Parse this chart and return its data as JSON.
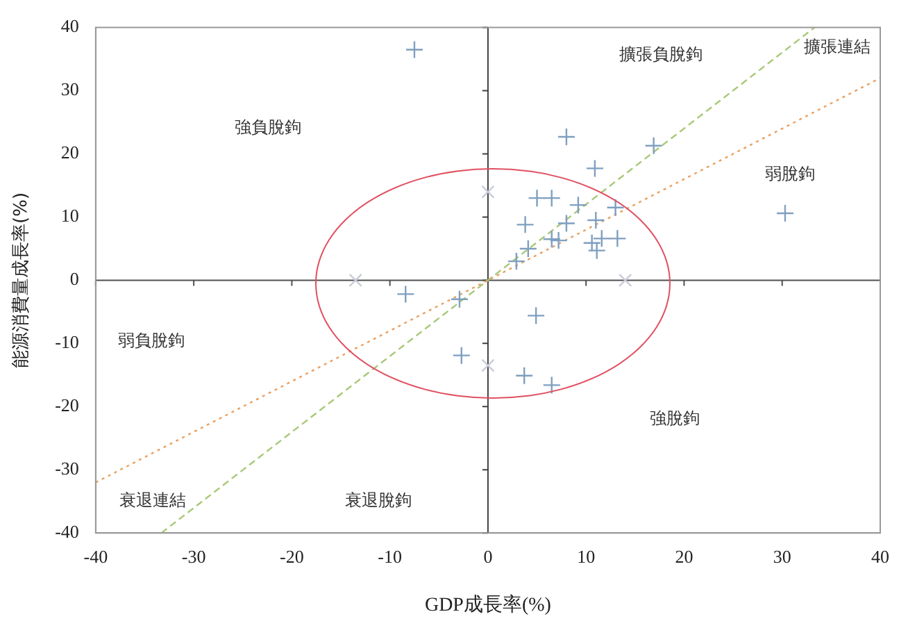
{
  "chart_data": {
    "type": "scatter",
    "xlabel": "GDP成長率(%)",
    "ylabel": "能源消費量成長率(%)",
    "xlim": [
      -40,
      40
    ],
    "xticks": [
      -40,
      -30,
      -20,
      -10,
      0,
      10,
      20,
      30,
      40
    ],
    "ylim": [
      -40,
      40
    ],
    "yticks": [
      -40,
      -30,
      -20,
      -10,
      0,
      10,
      20,
      30,
      40
    ],
    "grid": false,
    "legend": false,
    "marker": "cross",
    "series": [
      {
        "color": "#7f9fc0",
        "x": [
          -7.5,
          8,
          16.9,
          10.9,
          30.3,
          5,
          6.5,
          9.2,
          13,
          8,
          3.8,
          11,
          6.5,
          7.2,
          10.6,
          11.6,
          13.2,
          11.1,
          4.1,
          2.9,
          -8.4,
          -2.9,
          4.9,
          -2.7,
          3.7,
          6.5
        ],
        "values": [
          36.5,
          22.7,
          21.3,
          17.7,
          10.6,
          13,
          13,
          11.9,
          11.5,
          9,
          8.8,
          9.5,
          6.5,
          6.3,
          5.9,
          6.6,
          6.6,
          4.7,
          5,
          3,
          -2.2,
          -3,
          -5.6,
          -11.9,
          -15.1,
          -16.6
        ]
      },
      {
        "color": "#c8ccd8",
        "marker": "x",
        "x": [
          -13.5,
          14,
          0,
          0
        ],
        "values": [
          0,
          0,
          14,
          -13.5
        ]
      },
      {
        "type": "line",
        "color": "#e8a060",
        "line_style": "dotted",
        "marker": "none",
        "x": [
          -40,
          40
        ],
        "values": [
          -32,
          32
        ]
      },
      {
        "type": "line",
        "color": "#a8c878",
        "line_style": "dashed",
        "marker": "none",
        "x": [
          -33.3,
          33.3
        ],
        "values": [
          -40,
          40
        ]
      }
    ],
    "ref_lines": [
      {
        "axis": "x",
        "value": 0,
        "color": "#404040"
      },
      {
        "axis": "y",
        "value": 0,
        "color": "#505050"
      }
    ],
    "annotations": [
      "強負脫鉤",
      "擴張負脫鉤",
      "擴張連結",
      "弱脫鉤",
      "弱負脫鉤",
      "強脫鉤",
      "衰退連結",
      "衰退脫鉤"
    ]
  }
}
